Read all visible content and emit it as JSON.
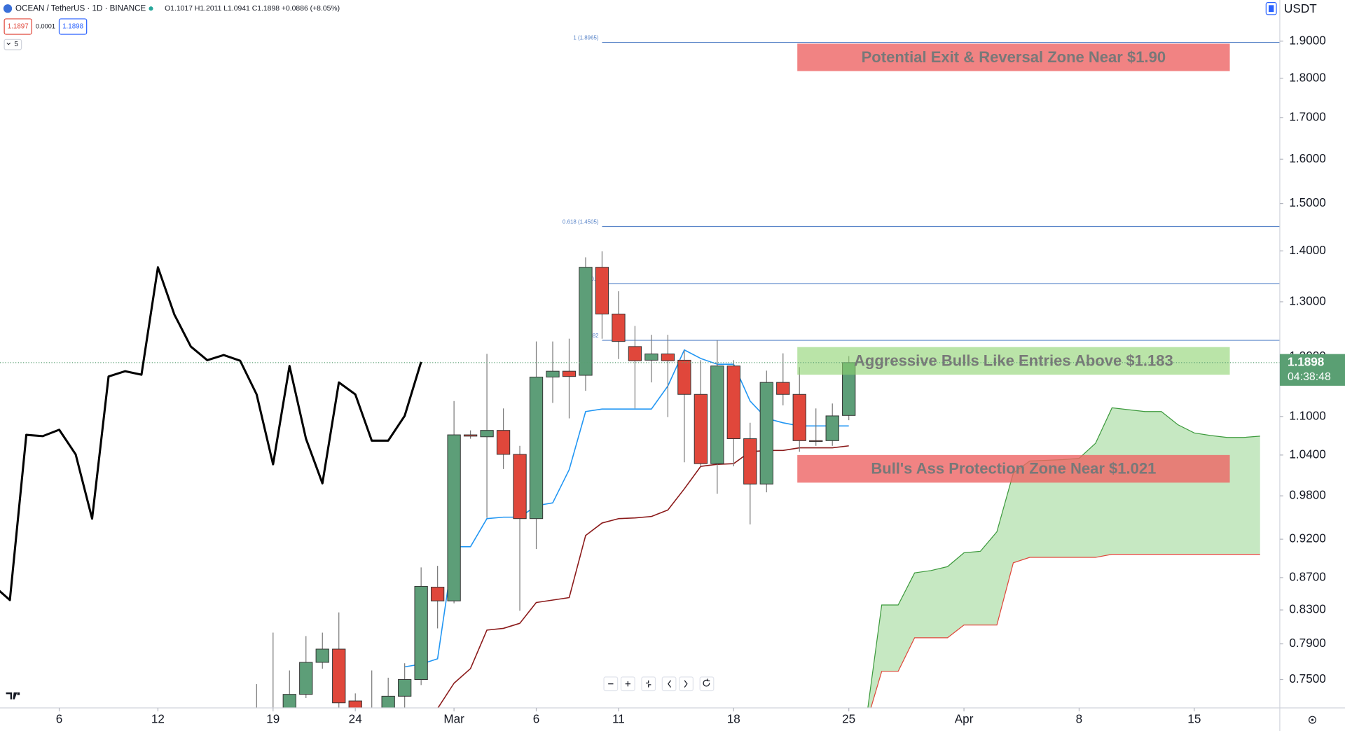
{
  "header": {
    "symbol": "OCEAN / TetherUS · 1D · BINANCE",
    "ohlc": "O1.1017 H1.2011 L1.0941 C1.1898 +0.0886 (+8.05%)",
    "sell": "1.1897",
    "spread": "0.0001",
    "buy": "1.1898",
    "indicators_count": "5",
    "currency": "USDT"
  },
  "chart_data": {
    "type": "candlestick",
    "log_scale": true,
    "ylim": [
      0.7197,
      2.0173
    ],
    "yticks": [
      {
        "value": 0.75,
        "label": "0.7500"
      },
      {
        "value": 0.79,
        "label": "0.7900"
      },
      {
        "value": 0.83,
        "label": "0.8300"
      },
      {
        "value": 0.87,
        "label": "0.8700"
      },
      {
        "value": 0.92,
        "label": "0.9200"
      },
      {
        "value": 0.98,
        "label": "0.9800"
      },
      {
        "value": 1.04,
        "label": "1.0400"
      },
      {
        "value": 1.1,
        "label": "1.1000"
      },
      {
        "value": 1.2,
        "label": "1.2000"
      },
      {
        "value": 1.3,
        "label": "1.3000"
      },
      {
        "value": 1.4,
        "label": "1.4000"
      },
      {
        "value": 1.5,
        "label": "1.5000"
      },
      {
        "value": 1.6,
        "label": "1.6000"
      },
      {
        "value": 1.7,
        "label": "1.7000"
      },
      {
        "value": 1.8,
        "label": "1.8000"
      },
      {
        "value": 1.9,
        "label": "1.9000"
      }
    ],
    "xlim": [
      33.4,
      111.2
    ],
    "xticks": [
      {
        "value": 37,
        "label": "6"
      },
      {
        "value": 43,
        "label": "12"
      },
      {
        "value": 50,
        "label": "19"
      },
      {
        "value": 55,
        "label": "24"
      },
      {
        "value": 61,
        "label": "Mar"
      },
      {
        "value": 66,
        "label": "6"
      },
      {
        "value": 71,
        "label": "11"
      },
      {
        "value": 78,
        "label": "18"
      },
      {
        "value": 85,
        "label": "25"
      },
      {
        "value": 92,
        "label": "Apr"
      },
      {
        "value": 99,
        "label": "8"
      },
      {
        "value": 106,
        "label": "15"
      }
    ],
    "candles": {
      "up_color": "#5d9e78",
      "down_color": "#e0473b",
      "wick_color": "#7a7a7a",
      "x": [
        49,
        50,
        51,
        52,
        53,
        54,
        55,
        56,
        57,
        58,
        59,
        60,
        61,
        62,
        63,
        64,
        65,
        66,
        67,
        68,
        69,
        70,
        71,
        72,
        73,
        74,
        75,
        76,
        77,
        78,
        79,
        80,
        81,
        82,
        83,
        84,
        85
      ],
      "open": [
        0.7,
        0.7,
        0.71,
        0.734,
        0.769,
        0.784,
        0.727,
        0.7,
        0.71,
        0.732,
        0.75,
        0.858,
        0.841,
        1.071,
        1.068,
        1.078,
        1.041,
        0.948,
        1.165,
        1.175,
        1.168,
        1.367,
        1.277,
        1.218,
        1.194,
        1.205,
        1.194,
        1.136,
        1.027,
        1.184,
        1.065,
        0.997,
        1.156,
        1.136,
        1.062,
        1.062,
        1.1017
      ],
      "high": [
        0.745,
        0.803,
        0.76,
        0.799,
        0.803,
        0.827,
        0.735,
        0.76,
        0.752,
        0.768,
        0.883,
        0.885,
        1.125,
        1.078,
        1.205,
        1.113,
        1.054,
        1.227,
        1.227,
        1.232,
        1.387,
        1.399,
        1.32,
        1.255,
        1.239,
        1.239,
        1.211,
        1.194,
        1.229,
        1.194,
        1.09,
        1.176,
        1.206,
        1.182,
        1.113,
        1.121,
        1.2011
      ],
      "low": [
        0.69,
        0.69,
        0.7,
        0.73,
        0.762,
        0.72,
        0.7,
        0.69,
        0.7,
        0.72,
        0.744,
        0.808,
        0.838,
        1.065,
        0.949,
        1.019,
        0.829,
        0.907,
        1.122,
        1.097,
        1.142,
        1.232,
        1.196,
        1.113,
        1.156,
        1.099,
        1.029,
        1.023,
        0.983,
        1.023,
        0.94,
        0.985,
        1.118,
        1.045,
        1.054,
        1.054,
        1.0941
      ],
      "close": [
        0.71,
        0.71,
        0.734,
        0.769,
        0.784,
        0.725,
        0.71,
        0.71,
        0.732,
        0.75,
        0.859,
        0.841,
        1.071,
        1.069,
        1.078,
        1.041,
        0.948,
        1.165,
        1.175,
        1.166,
        1.367,
        1.277,
        1.227,
        1.193,
        1.205,
        1.193,
        1.136,
        1.027,
        1.184,
        1.065,
        0.997,
        1.156,
        1.136,
        1.062,
        1.061,
        1.101,
        1.1898
      ]
    },
    "lines": [
      {
        "color": "#000000",
        "width": 2.5,
        "x": [
          33,
          34,
          35,
          36,
          37,
          38,
          39,
          40,
          41,
          42,
          43,
          44,
          45,
          46,
          47,
          48,
          49,
          50,
          51,
          52,
          53,
          54,
          55,
          56,
          57,
          58,
          59
        ],
        "values": [
          0.86,
          0.842,
          1.071,
          1.069,
          1.079,
          1.041,
          0.948,
          1.166,
          1.175,
          1.169,
          1.367,
          1.276,
          1.218,
          1.194,
          1.203,
          1.193,
          1.136,
          1.026,
          1.184,
          1.065,
          0.998,
          1.156,
          1.136,
          1.062,
          1.062,
          1.101,
          1.191
        ]
      },
      {
        "color": "#2196f3",
        "width": 1.3,
        "x": [
          58,
          59,
          60,
          61,
          62,
          63,
          64,
          65,
          66,
          67,
          68,
          69,
          70,
          71,
          72,
          73,
          74,
          75,
          76,
          77,
          78,
          79,
          80,
          81,
          82,
          83,
          84,
          85
        ],
        "values": [
          0.764,
          0.767,
          0.773,
          0.91,
          0.91,
          0.948,
          0.95,
          0.95,
          0.966,
          0.97,
          1.018,
          1.108,
          1.112,
          1.112,
          1.112,
          1.112,
          1.15,
          1.212,
          1.197,
          1.187,
          1.187,
          1.125,
          1.097,
          1.09,
          1.085,
          1.085,
          1.085,
          1.085
        ]
      },
      {
        "color": "#8b1a1a",
        "width": 1.3,
        "x": [
          60,
          61,
          62,
          63,
          64,
          65,
          66,
          67,
          68,
          69,
          70,
          71,
          72,
          73,
          74,
          75,
          76,
          77,
          78,
          79,
          80,
          81,
          82,
          83,
          84,
          85
        ],
        "values": [
          0.719,
          0.746,
          0.762,
          0.806,
          0.808,
          0.814,
          0.839,
          0.842,
          0.845,
          0.925,
          0.942,
          0.948,
          0.949,
          0.951,
          0.96,
          0.99,
          1.023,
          1.026,
          1.027,
          1.045,
          1.047,
          1.047,
          1.051,
          1.051,
          1.051,
          1.054
        ]
      }
    ],
    "cloud": {
      "fill": "rgba(120,200,110,0.42)",
      "span_a_color": "#3d9a3d",
      "span_b_color": "#e0473b",
      "x": [
        86,
        87,
        88,
        89,
        90,
        91,
        92,
        93,
        94,
        95,
        96,
        97,
        98,
        99,
        100,
        101,
        102,
        103,
        104,
        105,
        106,
        107,
        108,
        109,
        110
      ],
      "span_a": [
        0.7,
        0.836,
        0.836,
        0.876,
        0.879,
        0.884,
        0.902,
        0.904,
        0.93,
        1.013,
        1.031,
        1.032,
        1.033,
        1.035,
        1.058,
        1.114,
        1.111,
        1.108,
        1.108,
        1.087,
        1.074,
        1.07,
        1.067,
        1.067,
        1.069
      ],
      "span_b": [
        0.7,
        0.759,
        0.759,
        0.797,
        0.797,
        0.797,
        0.812,
        0.812,
        0.812,
        0.889,
        0.896,
        0.896,
        0.896,
        0.896,
        0.896,
        0.9,
        0.9,
        0.9,
        0.9,
        0.9,
        0.9,
        0.9,
        0.9,
        0.9,
        0.9
      ]
    },
    "fib_color": "#5b86c9",
    "fib_start": 70,
    "fib_levels": [
      {
        "label": "1 (1.8965)",
        "value": 1.8965
      },
      {
        "label": "0.618 (1.4505)",
        "value": 1.4505
      },
      {
        "label": "0.5",
        "value": 1.335
      },
      {
        "label": "0.382",
        "value": 1.229
      }
    ],
    "zones": [
      {
        "label": "Potential Exit & Reversal Zone Near $1.90",
        "top": 1.893,
        "bottom": 1.819,
        "x0": 81.87,
        "x1": 108.16,
        "color": "rgba(238,100,100,0.8)"
      },
      {
        "label": "Aggressive Bulls Like Entries Above $1.183",
        "top": 1.217,
        "bottom": 1.169,
        "x0": 81.87,
        "x1": 108.16,
        "color": "rgba(140,210,110,0.6)"
      },
      {
        "label": "Bull's Ass Protection Zone Near $1.021",
        "top": 1.04,
        "bottom": 0.999,
        "x0": 81.87,
        "x1": 108.16,
        "color": "rgba(238,100,100,0.8)"
      }
    ],
    "last_price": {
      "value": 1.1898,
      "countdown": "04:38:48",
      "color": "#5a9f73"
    }
  }
}
